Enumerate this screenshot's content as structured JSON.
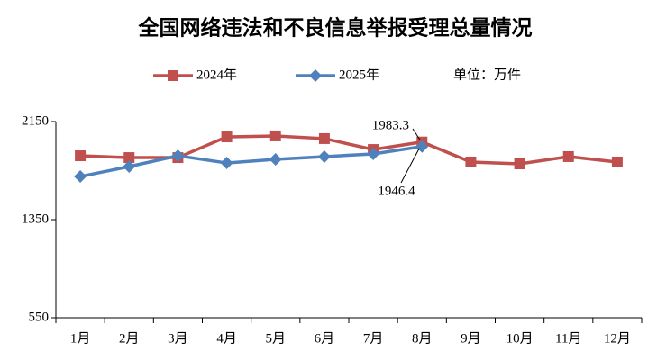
{
  "chart_data": {
    "type": "line",
    "title": "全国网络违法和不良信息举报受理总量情况",
    "unit_label": "单位：万件",
    "categories": [
      "1月",
      "2月",
      "3月",
      "4月",
      "5月",
      "6月",
      "7月",
      "8月",
      "9月",
      "10月",
      "11月",
      "12月"
    ],
    "series": [
      {
        "name": "2024年",
        "color": "#c0504d",
        "marker": "square",
        "values": [
          1871,
          1856,
          1856,
          2025,
          2033,
          2011,
          1922,
          1983.3,
          1820,
          1805,
          1864,
          1820
        ]
      },
      {
        "name": "2025年",
        "color": "#4f81bd",
        "marker": "diamond",
        "values": [
          1702,
          1783,
          1871,
          1812,
          1842,
          1864,
          1886,
          1946.4,
          null,
          null,
          null,
          null
        ]
      }
    ],
    "ylim": [
      550,
      2150
    ],
    "yticks": [
      550,
      1350,
      2150
    ],
    "grid": false,
    "legend": "top"
  }
}
